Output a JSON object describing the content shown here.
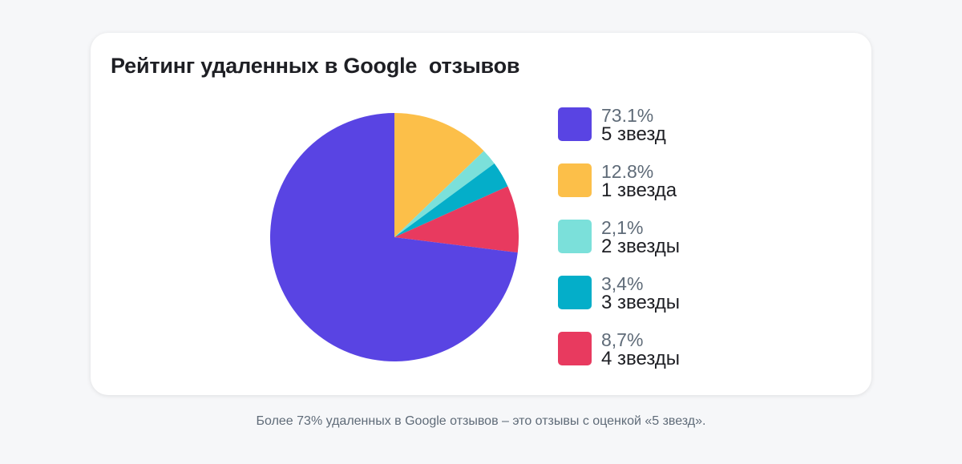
{
  "chart_data": {
    "type": "pie",
    "title": "Рейтинг удаленных в Google  отзывов",
    "slices": [
      {
        "label": "1 звезда",
        "percent_label": "12.8%",
        "value": 12.8,
        "color": "#fcbf49"
      },
      {
        "label": "2 звезды",
        "percent_label": "2,1%",
        "value": 2.1,
        "color": "#7be0da"
      },
      {
        "label": "3 звезды",
        "percent_label": "3,4%",
        "value": 3.4,
        "color": "#04aec9"
      },
      {
        "label": "4 звезды",
        "percent_label": "8,7%",
        "value": 8.7,
        "color": "#e83a5f"
      },
      {
        "label": "5 звезд",
        "percent_label": "73.1%",
        "value": 73.1,
        "color": "#5944e3"
      }
    ],
    "legend_order": [
      4,
      0,
      1,
      2,
      3
    ],
    "legend_position": "right"
  },
  "caption": "Более 73% удаленных в Google отзывов – это отзывы с оценкой «5 звезд»."
}
